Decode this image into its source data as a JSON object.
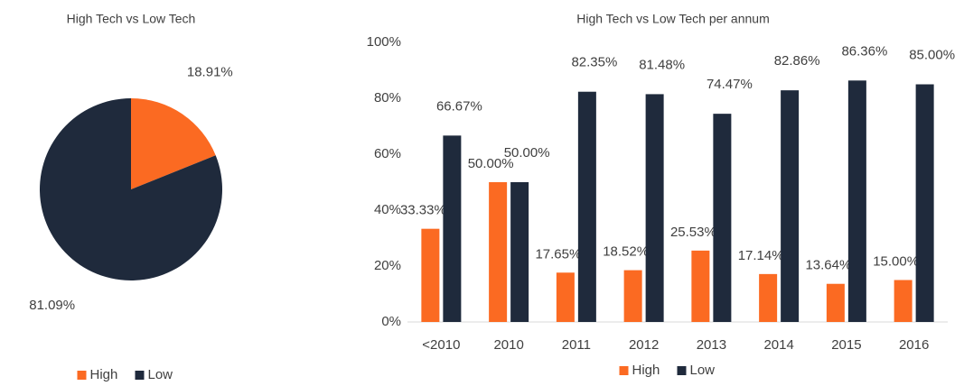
{
  "chart_data": [
    {
      "type": "pie",
      "title": "High Tech vs Low Tech",
      "categories": [
        "High",
        "Low"
      ],
      "values": [
        18.91,
        81.09
      ],
      "value_labels": [
        "18.91%",
        "81.09%"
      ],
      "colors": [
        "#fb6a22",
        "#1f2a3c"
      ],
      "legend": "bottom"
    },
    {
      "type": "bar",
      "title": "High Tech vs Low Tech per annum",
      "categories": [
        "<2010",
        "2010",
        "2011",
        "2012",
        "2013",
        "2014",
        "2015",
        "2016"
      ],
      "series": [
        {
          "name": "High",
          "color": "#fb6a22",
          "values": [
            33.33,
            50.0,
            17.65,
            18.52,
            25.53,
            17.14,
            13.64,
            15.0
          ],
          "value_labels": [
            "33.33%",
            "50.00%",
            "17.65%",
            "18.52%",
            "25.53%",
            "17.14%",
            "13.64%",
            "15.00%"
          ]
        },
        {
          "name": "Low",
          "color": "#1f2a3c",
          "values": [
            66.67,
            50.0,
            82.35,
            81.48,
            74.47,
            82.86,
            86.36,
            85.0
          ],
          "value_labels": [
            "66.67%",
            "50.00%",
            "82.35%",
            "81.48%",
            "74.47%",
            "82.86%",
            "86.36%",
            "85.00%"
          ]
        }
      ],
      "ylim": [
        0,
        100
      ],
      "yticks": [
        {
          "value": 0,
          "label": "0%"
        },
        {
          "value": 20,
          "label": "20%"
        },
        {
          "value": 40,
          "label": "40%"
        },
        {
          "value": 60,
          "label": "60%"
        },
        {
          "value": 80,
          "label": "80%"
        },
        {
          "value": 100,
          "label": "100%"
        }
      ],
      "grid": false,
      "legend": "bottom"
    }
  ]
}
